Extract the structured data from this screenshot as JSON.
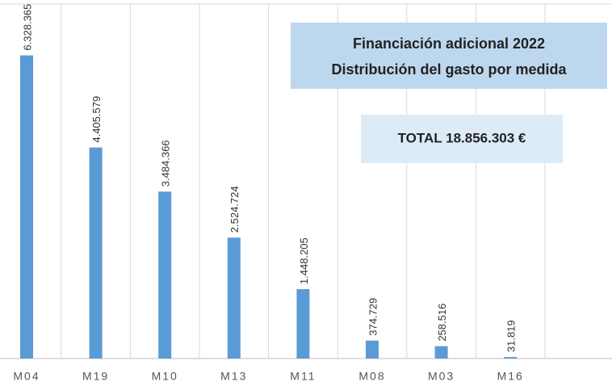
{
  "chart_data": {
    "type": "bar",
    "title": "Financiación adicional 2022",
    "subtitle": "Distribución del gasto por medida",
    "annotation": "TOTAL 18.856.303 €",
    "categories": [
      "M04",
      "M19",
      "M10",
      "M13",
      "M11",
      "M08",
      "M03",
      "M16"
    ],
    "values": [
      6328365,
      4405579,
      3484366,
      2524724,
      1448205,
      374729,
      258516,
      31819
    ],
    "value_labels": [
      "6.328.365",
      "4.405.579",
      "3.484.366",
      "2.524.724",
      "1.448.205",
      "374.729",
      "258.516",
      "31.819"
    ],
    "color": "#5b9bd5",
    "ylim": [
      0,
      7400000
    ]
  }
}
